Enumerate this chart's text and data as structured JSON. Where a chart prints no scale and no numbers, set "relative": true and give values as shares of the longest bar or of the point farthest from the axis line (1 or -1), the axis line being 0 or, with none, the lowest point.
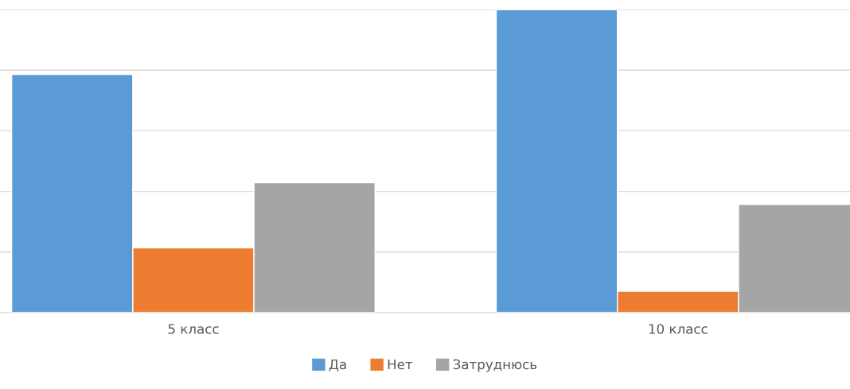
{
  "chart_data": {
    "type": "bar",
    "relative": true,
    "categories": [
      "5 класс",
      "10 класс"
    ],
    "series": [
      {
        "name": "Да",
        "color": "#5b9bd5",
        "values": [
          0.786,
          1
        ]
      },
      {
        "name": "Нет",
        "color": "#ed7d31",
        "values": [
          0.214,
          0.071
        ]
      },
      {
        "name": "Затруднюсь",
        "color": "#a5a5a5",
        "values": [
          0.429,
          0.357
        ]
      }
    ],
    "grid": "y",
    "legend": "bottom"
  }
}
